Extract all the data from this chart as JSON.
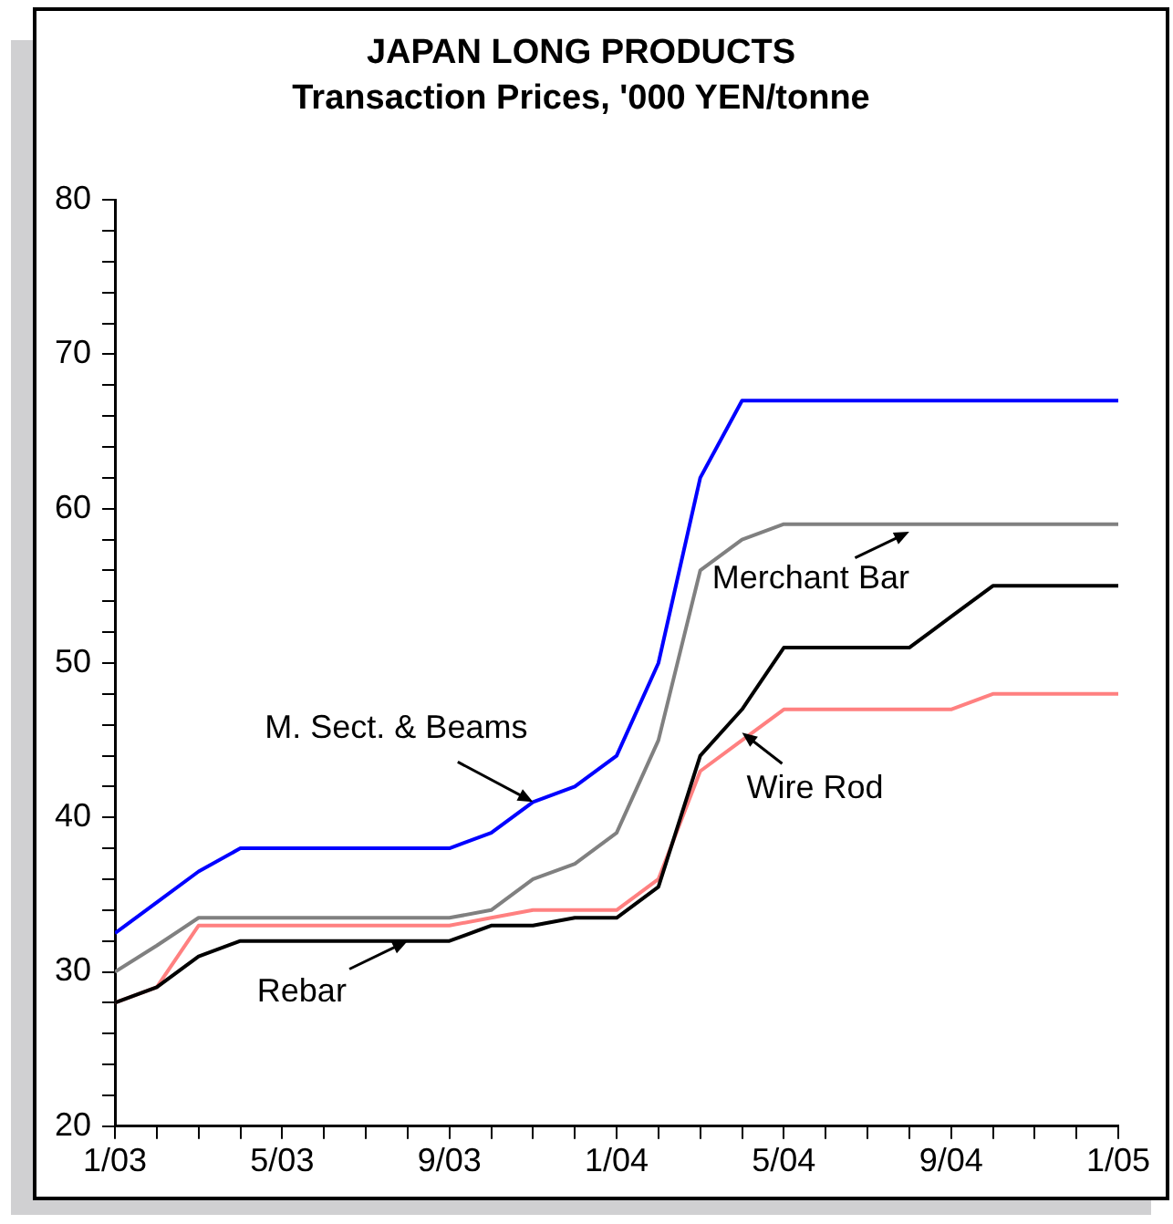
{
  "chart_data": {
    "type": "line",
    "title": "JAPAN LONG PRODUCTS",
    "subtitle": "Transaction Prices, '000 YEN/tonne",
    "x": [
      "2003-01",
      "2003-02",
      "2003-03",
      "2003-04",
      "2003-05",
      "2003-06",
      "2003-07",
      "2003-08",
      "2003-09",
      "2003-10",
      "2003-11",
      "2003-12",
      "2004-01",
      "2004-02",
      "2004-03",
      "2004-04",
      "2004-05",
      "2004-06",
      "2004-07",
      "2004-08",
      "2004-09",
      "2004-10",
      "2004-11",
      "2004-12",
      "2005-01"
    ],
    "series": [
      {
        "color": "#0000ff",
        "values": [
          32.5,
          34.5,
          36.5,
          38,
          38,
          38,
          38,
          38,
          38,
          39,
          41,
          42,
          44,
          50,
          62,
          67,
          67,
          67,
          67,
          67,
          67,
          67,
          67,
          67,
          67
        ]
      },
      {
        "color": "#808080",
        "values": [
          30,
          31.7,
          33.5,
          33.5,
          33.5,
          33.5,
          33.5,
          33.5,
          33.5,
          34,
          36,
          37,
          39,
          45,
          56,
          58,
          59,
          59,
          59,
          59,
          59,
          59,
          59,
          59,
          59
        ]
      },
      {
        "color": "#000000",
        "values": [
          28,
          29,
          31,
          32,
          32,
          32,
          32,
          32,
          32,
          33,
          33,
          33.5,
          33.5,
          35.5,
          44,
          47,
          51,
          51,
          51,
          51,
          53,
          55,
          55,
          55,
          55
        ]
      },
      {
        "color": "#ff8080",
        "values": [
          28,
          29,
          33,
          33,
          33,
          33,
          33,
          33,
          33,
          33.5,
          34,
          34,
          34,
          36,
          43,
          45,
          47,
          47,
          47,
          47,
          47,
          48,
          48,
          48,
          48
        ]
      }
    ],
    "annotations": [
      {
        "text": "M. Sect. & Beams",
        "x": "2003-11",
        "y": 41
      },
      {
        "text": "Rebar",
        "x": "2003-08",
        "y": 32
      },
      {
        "text": "Merchant Bar",
        "x": "2004-08",
        "y": 58.5
      },
      {
        "text": "Wire Rod",
        "x": "2004-04",
        "y": 45.5
      }
    ],
    "xlim": [
      "2003-01",
      "2005-01"
    ],
    "xticks": [
      {
        "value": "2003-01",
        "label": "1/03"
      },
      {
        "value": "2003-02",
        "label": null
      },
      {
        "value": "2003-03",
        "label": null
      },
      {
        "value": "2003-04",
        "label": null
      },
      {
        "value": "2003-05",
        "label": "5/03"
      },
      {
        "value": "2003-06",
        "label": null
      },
      {
        "value": "2003-07",
        "label": null
      },
      {
        "value": "2003-08",
        "label": null
      },
      {
        "value": "2003-09",
        "label": "9/03"
      },
      {
        "value": "2003-10",
        "label": null
      },
      {
        "value": "2003-11",
        "label": null
      },
      {
        "value": "2003-12",
        "label": null
      },
      {
        "value": "2004-01",
        "label": "1/04"
      },
      {
        "value": "2004-02",
        "label": null
      },
      {
        "value": "2004-03",
        "label": null
      },
      {
        "value": "2004-04",
        "label": null
      },
      {
        "value": "2004-05",
        "label": "5/04"
      },
      {
        "value": "2004-06",
        "label": null
      },
      {
        "value": "2004-07",
        "label": null
      },
      {
        "value": "2004-08",
        "label": null
      },
      {
        "value": "2004-09",
        "label": "9/04"
      },
      {
        "value": "2004-10",
        "label": null
      },
      {
        "value": "2004-11",
        "label": null
      },
      {
        "value": "2004-12",
        "label": null
      },
      {
        "value": "2005-01",
        "label": "1/05"
      }
    ],
    "ylim": [
      20,
      80
    ],
    "yticks": [
      20,
      {
        "value": 22,
        "label": null
      },
      {
        "value": 24,
        "label": null
      },
      {
        "value": 26,
        "label": null
      },
      {
        "value": 28,
        "label": null
      },
      30,
      {
        "value": 32,
        "label": null
      },
      {
        "value": 34,
        "label": null
      },
      {
        "value": 36,
        "label": null
      },
      {
        "value": 38,
        "label": null
      },
      40,
      {
        "value": 42,
        "label": null
      },
      {
        "value": 44,
        "label": null
      },
      {
        "value": 46,
        "label": null
      },
      {
        "value": 48,
        "label": null
      },
      50,
      {
        "value": 52,
        "label": null
      },
      {
        "value": 54,
        "label": null
      },
      {
        "value": 56,
        "label": null
      },
      {
        "value": 58,
        "label": null
      },
      60,
      {
        "value": 62,
        "label": null
      },
      {
        "value": 64,
        "label": null
      },
      {
        "value": 66,
        "label": null
      },
      {
        "value": 68,
        "label": null
      },
      70,
      {
        "value": 72,
        "label": null
      },
      {
        "value": 74,
        "label": null
      },
      {
        "value": 76,
        "label": null
      },
      {
        "value": 78,
        "label": null
      },
      80
    ],
    "grid": false,
    "legend": false,
    "marker": "none",
    "line_style": "solid"
  }
}
